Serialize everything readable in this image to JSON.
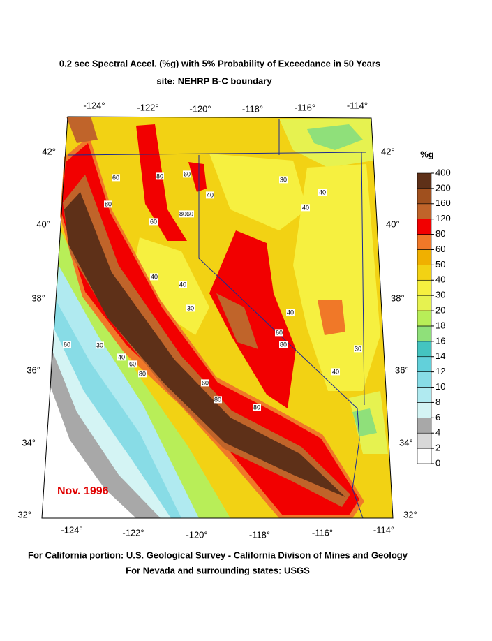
{
  "header": {
    "title": "0.2 sec Spectral Accel. (%g) with 5% Probability of Exceedance in 50 Years",
    "subtitle": "site: NEHRP B-C boundary"
  },
  "map": {
    "lon_top": [
      "-124°",
      "-122°",
      "-120°",
      "-118°",
      "-116°",
      "-114°"
    ],
    "lon_bottom": [
      "-124°",
      "-122°",
      "-120°",
      "-118°",
      "-116°",
      "-114°"
    ],
    "lat_left": [
      "42°",
      "40°",
      "38°",
      "36°",
      "34°",
      "32°"
    ],
    "lat_right": [
      "42°",
      "40°",
      "38°",
      "36°",
      "34°",
      "32°"
    ],
    "date": "Nov. 1996",
    "contour_labels": [
      "60",
      "80",
      "80",
      "60",
      "40",
      "30",
      "40",
      "40",
      "60",
      "80",
      "60",
      "40",
      "40",
      "30",
      "40",
      "60",
      "80",
      "30",
      "40",
      "60",
      "80",
      "80",
      "60",
      "30",
      "40",
      "60",
      "80"
    ]
  },
  "legend": {
    "unit": "%g",
    "values": [
      0,
      2,
      4,
      6,
      8,
      10,
      12,
      14,
      16,
      18,
      20,
      30,
      40,
      50,
      60,
      80,
      120,
      160,
      200,
      400
    ],
    "colors": [
      "#ffffff",
      "#d8d8d8",
      "#a8a8a8",
      "#d4f4f4",
      "#b0eaf0",
      "#88dce6",
      "#62d0da",
      "#44c4c0",
      "#8fe07a",
      "#b8ee58",
      "#e6f250",
      "#f6f040",
      "#f2d214",
      "#f0b000",
      "#f07828",
      "#f20000",
      "#c0642a",
      "#a0501e",
      "#5e3018"
    ]
  },
  "footer": {
    "line1": "For California portion: U.S. Geological Survey - California Divison of Mines and Geology",
    "line2": "For Nevada and surrounding states: USGS"
  }
}
